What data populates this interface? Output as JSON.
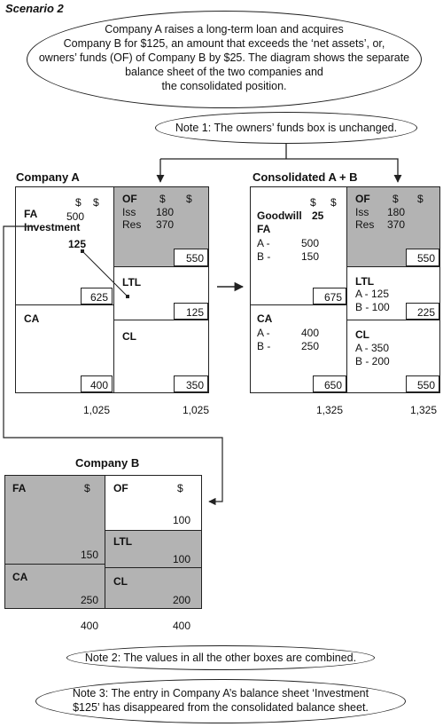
{
  "scenario_title": "Scenario 2",
  "intro_note": [
    "Company A raises a long-term loan and acquires",
    "Company B for $125, an amount that exceeds the ‘net assets’, or,",
    "owners’ funds (OF) of Company B by $25. The diagram shows the separate",
    "balance sheet of the two companies and",
    "the consolidated position."
  ],
  "note1": "Note 1: The owners’ funds box is unchanged.",
  "note2": "Note 2: The values in all the other boxes are combined.",
  "note3": [
    "Note 3: The entry in Company A’s balance sheet ‘Investment",
    "$125’ has disappeared from the consolidated balance sheet."
  ],
  "company_a": {
    "title": "Company A",
    "dollar": "$",
    "fa_label": "FA",
    "fa_value": "500",
    "investment_label": "Investment",
    "investment_value": "125",
    "fixed_total": "625",
    "ca_label": "CA",
    "ca_total": "400",
    "of_label": "OF",
    "iss_label": "Iss",
    "iss_value": "180",
    "res_label": "Res",
    "res_value": "370",
    "of_total": "550",
    "ltl_label": "LTL",
    "ltl_total": "125",
    "cl_label": "CL",
    "cl_total": "350",
    "assets_total": "1,025",
    "liabilities_total": "1,025"
  },
  "consolidated": {
    "title": "Consolidated A + B",
    "dollar": "$",
    "goodwill_label": "Goodwill",
    "goodwill_value": "25",
    "fa_label": "FA",
    "fa_a_label": "A -",
    "fa_a_value": "500",
    "fa_b_label": "B -",
    "fa_b_value": "150",
    "fixed_total": "675",
    "ca_label": "CA",
    "ca_a_label": "A -",
    "ca_a_value": "400",
    "ca_b_label": "B -",
    "ca_b_value": "250",
    "ca_total": "650",
    "of_label": "OF",
    "iss_label": "Iss",
    "iss_value": "180",
    "res_label": "Res",
    "res_value": "370",
    "of_total": "550",
    "ltl_label": "LTL",
    "ltl_a": "A - 125",
    "ltl_b": "B - 100",
    "ltl_total": "225",
    "cl_label": "CL",
    "cl_a": "A - 350",
    "cl_b": "B - 200",
    "cl_total": "550",
    "assets_total": "1,325",
    "liabilities_total": "1,325"
  },
  "company_b": {
    "title": "Company B",
    "dollar": "$",
    "fa_label": "FA",
    "fa_value": "150",
    "ca_label": "CA",
    "ca_value": "250",
    "of_label": "OF",
    "of_value": "100",
    "ltl_label": "LTL",
    "ltl_value": "100",
    "cl_label": "CL",
    "cl_value": "200",
    "assets_total": "400",
    "liabilities_total": "400"
  },
  "colors": {
    "shaded": "#b3b3b3",
    "line": "#222222"
  }
}
